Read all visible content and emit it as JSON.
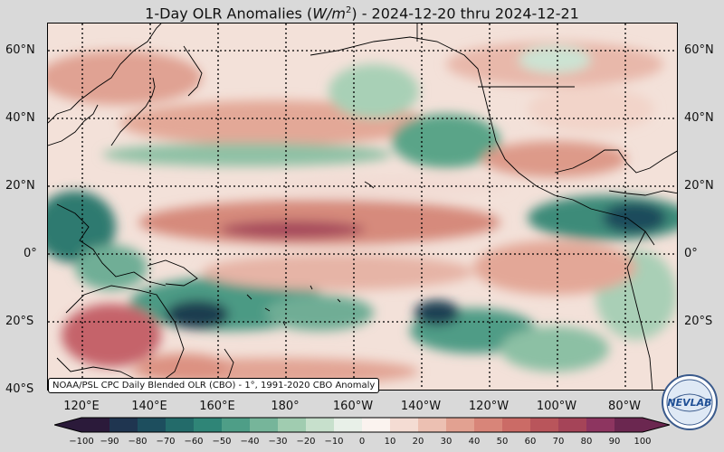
{
  "title": {
    "prefix": "1-Day OLR Anomalies (",
    "unit_base": "W/m",
    "unit_exp": "2",
    "suffix": ") - 2024-12-20 thru 2024-12-21"
  },
  "source_note": "NOAA/PSL CPC Daily Blended OLR (CBO) - 1°, 1991-2020 CBO Anomaly",
  "axes": {
    "lat_labels": [
      "60°N",
      "40°N",
      "20°N",
      "0°",
      "20°S",
      "40°S"
    ],
    "lon_labels": [
      "120°E",
      "140°E",
      "160°E",
      "180°",
      "160°W",
      "140°W",
      "120°W",
      "100°W",
      "80°W"
    ]
  },
  "colorbar": {
    "ticks": [
      "−100",
      "−90",
      "−80",
      "−70",
      "−60",
      "−50",
      "−40",
      "−30",
      "−20",
      "−10",
      "0",
      "10",
      "20",
      "30",
      "40",
      "50",
      "60",
      "70",
      "80",
      "90",
      "100"
    ],
    "colors": [
      "#2b1a3a",
      "#1f3550",
      "#1d4e5e",
      "#236b6a",
      "#2f8577",
      "#4e9e87",
      "#76b59a",
      "#a0ccb0",
      "#c7e0cc",
      "#e8f0e8",
      "#fbf3ef",
      "#f4dcd3",
      "#ecc0b2",
      "#e2a191",
      "#d88579",
      "#cb6b66",
      "#b9555b",
      "#a54458",
      "#8d3560",
      "#6b2750"
    ]
  },
  "logo": {
    "text": "NEVLAB"
  }
}
